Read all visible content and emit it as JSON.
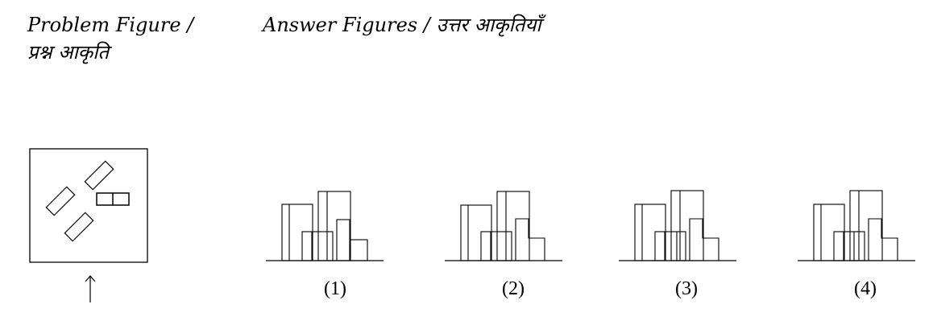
{
  "headings": {
    "problem_line1": "Problem Figure /",
    "problem_line2": "प्रश्न आकृति",
    "answer": "Answer Figures / उत्तर आकृतियाँ"
  },
  "problem_figure": {
    "arrow_glyph": "↑"
  },
  "answer_figures": [
    {
      "label": "(1)"
    },
    {
      "label": "(2)"
    },
    {
      "label": "(3)"
    },
    {
      "label": "(4)"
    }
  ]
}
